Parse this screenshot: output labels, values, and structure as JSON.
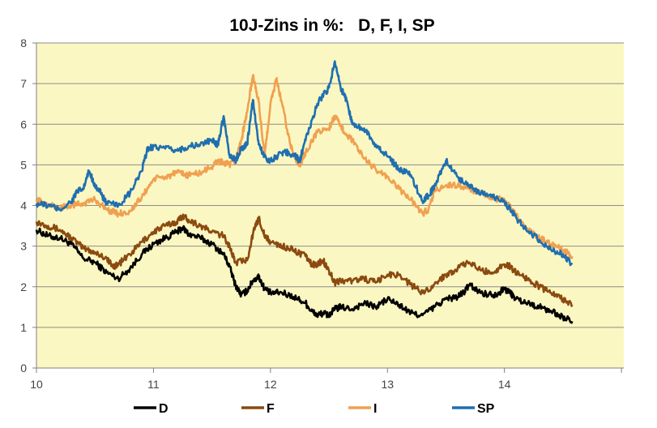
{
  "chart_data": {
    "type": "line",
    "title": "10J-Zins in %:   D, F, I, SP",
    "xlabel": "",
    "ylabel": "",
    "xlim": [
      10,
      15.02
    ],
    "ylim": [
      0,
      8
    ],
    "x_ticks": [
      "10",
      "11",
      "12",
      "13",
      "14"
    ],
    "y_ticks": [
      "0",
      "1",
      "2",
      "3",
      "4",
      "5",
      "6",
      "7",
      "8"
    ],
    "grid": "horizontal",
    "legend_position": "bottom",
    "plot_background": "#fbf7c2",
    "series": [
      {
        "name": "D",
        "color": "#000000",
        "points": [
          [
            10.0,
            3.4
          ],
          [
            10.1,
            3.25
          ],
          [
            10.2,
            3.2
          ],
          [
            10.3,
            3.05
          ],
          [
            10.4,
            2.7
          ],
          [
            10.5,
            2.6
          ],
          [
            10.6,
            2.35
          ],
          [
            10.7,
            2.2
          ],
          [
            10.8,
            2.45
          ],
          [
            10.9,
            2.8
          ],
          [
            11.0,
            3.05
          ],
          [
            11.1,
            3.2
          ],
          [
            11.2,
            3.35
          ],
          [
            11.25,
            3.45
          ],
          [
            11.3,
            3.3
          ],
          [
            11.4,
            3.2
          ],
          [
            11.5,
            3.05
          ],
          [
            11.6,
            2.8
          ],
          [
            11.65,
            2.5
          ],
          [
            11.7,
            2.05
          ],
          [
            11.75,
            1.8
          ],
          [
            11.8,
            1.9
          ],
          [
            11.85,
            2.15
          ],
          [
            11.9,
            2.25
          ],
          [
            11.95,
            1.95
          ],
          [
            12.0,
            1.85
          ],
          [
            12.1,
            1.85
          ],
          [
            12.2,
            1.75
          ],
          [
            12.3,
            1.6
          ],
          [
            12.35,
            1.4
          ],
          [
            12.4,
            1.3
          ],
          [
            12.45,
            1.35
          ],
          [
            12.5,
            1.3
          ],
          [
            12.55,
            1.45
          ],
          [
            12.6,
            1.5
          ],
          [
            12.7,
            1.45
          ],
          [
            12.8,
            1.6
          ],
          [
            12.9,
            1.5
          ],
          [
            13.0,
            1.7
          ],
          [
            13.1,
            1.55
          ],
          [
            13.2,
            1.35
          ],
          [
            13.3,
            1.3
          ],
          [
            13.4,
            1.5
          ],
          [
            13.5,
            1.7
          ],
          [
            13.6,
            1.75
          ],
          [
            13.65,
            1.85
          ],
          [
            13.7,
            2.05
          ],
          [
            13.8,
            1.85
          ],
          [
            13.9,
            1.8
          ],
          [
            13.95,
            1.85
          ],
          [
            14.0,
            1.95
          ],
          [
            14.05,
            1.85
          ],
          [
            14.1,
            1.7
          ],
          [
            14.2,
            1.6
          ],
          [
            14.3,
            1.5
          ],
          [
            14.4,
            1.4
          ],
          [
            14.5,
            1.25
          ],
          [
            14.58,
            1.15
          ]
        ]
      },
      {
        "name": "F",
        "color": "#8b4a10",
        "points": [
          [
            10.0,
            3.6
          ],
          [
            10.1,
            3.5
          ],
          [
            10.2,
            3.4
          ],
          [
            10.3,
            3.2
          ],
          [
            10.4,
            2.95
          ],
          [
            10.5,
            2.85
          ],
          [
            10.6,
            2.7
          ],
          [
            10.65,
            2.5
          ],
          [
            10.7,
            2.55
          ],
          [
            10.8,
            2.8
          ],
          [
            10.9,
            3.1
          ],
          [
            11.0,
            3.35
          ],
          [
            11.1,
            3.5
          ],
          [
            11.2,
            3.6
          ],
          [
            11.25,
            3.75
          ],
          [
            11.3,
            3.65
          ],
          [
            11.4,
            3.5
          ],
          [
            11.5,
            3.35
          ],
          [
            11.6,
            3.25
          ],
          [
            11.65,
            3.0
          ],
          [
            11.7,
            2.6
          ],
          [
            11.8,
            2.65
          ],
          [
            11.85,
            3.3
          ],
          [
            11.9,
            3.7
          ],
          [
            11.95,
            3.25
          ],
          [
            12.0,
            3.1
          ],
          [
            12.1,
            3.0
          ],
          [
            12.2,
            2.9
          ],
          [
            12.3,
            2.75
          ],
          [
            12.35,
            2.55
          ],
          [
            12.4,
            2.55
          ],
          [
            12.45,
            2.65
          ],
          [
            12.5,
            2.4
          ],
          [
            12.55,
            2.1
          ],
          [
            12.6,
            2.15
          ],
          [
            12.7,
            2.15
          ],
          [
            12.8,
            2.2
          ],
          [
            12.9,
            2.1
          ],
          [
            13.0,
            2.3
          ],
          [
            13.1,
            2.3
          ],
          [
            13.2,
            2.05
          ],
          [
            13.3,
            1.85
          ],
          [
            13.4,
            2.05
          ],
          [
            13.5,
            2.3
          ],
          [
            13.6,
            2.45
          ],
          [
            13.7,
            2.6
          ],
          [
            13.8,
            2.4
          ],
          [
            13.9,
            2.35
          ],
          [
            14.0,
            2.55
          ],
          [
            14.05,
            2.5
          ],
          [
            14.1,
            2.35
          ],
          [
            14.2,
            2.2
          ],
          [
            14.3,
            2.0
          ],
          [
            14.4,
            1.85
          ],
          [
            14.5,
            1.7
          ],
          [
            14.58,
            1.55
          ]
        ]
      },
      {
        "name": "I",
        "color": "#f0a050",
        "points": [
          [
            10.0,
            4.15
          ],
          [
            10.1,
            4.0
          ],
          [
            10.2,
            3.95
          ],
          [
            10.3,
            4.0
          ],
          [
            10.4,
            4.05
          ],
          [
            10.5,
            4.15
          ],
          [
            10.6,
            3.9
          ],
          [
            10.7,
            3.8
          ],
          [
            10.8,
            3.85
          ],
          [
            10.9,
            4.2
          ],
          [
            11.0,
            4.65
          ],
          [
            11.1,
            4.7
          ],
          [
            11.2,
            4.8
          ],
          [
            11.3,
            4.75
          ],
          [
            11.4,
            4.8
          ],
          [
            11.5,
            4.95
          ],
          [
            11.55,
            5.1
          ],
          [
            11.6,
            5.05
          ],
          [
            11.65,
            5.0
          ],
          [
            11.7,
            5.1
          ],
          [
            11.75,
            5.6
          ],
          [
            11.8,
            6.3
          ],
          [
            11.85,
            7.2
          ],
          [
            11.9,
            6.55
          ],
          [
            11.95,
            5.2
          ],
          [
            12.0,
            6.5
          ],
          [
            12.05,
            7.1
          ],
          [
            12.1,
            6.5
          ],
          [
            12.15,
            5.75
          ],
          [
            12.2,
            5.2
          ],
          [
            12.25,
            5.0
          ],
          [
            12.3,
            5.3
          ],
          [
            12.4,
            5.8
          ],
          [
            12.5,
            5.9
          ],
          [
            12.55,
            6.2
          ],
          [
            12.6,
            5.95
          ],
          [
            12.65,
            5.75
          ],
          [
            12.7,
            5.6
          ],
          [
            12.8,
            5.15
          ],
          [
            12.9,
            4.9
          ],
          [
            13.0,
            4.7
          ],
          [
            13.1,
            4.4
          ],
          [
            13.2,
            4.15
          ],
          [
            13.3,
            3.8
          ],
          [
            13.35,
            3.9
          ],
          [
            13.4,
            4.35
          ],
          [
            13.5,
            4.5
          ],
          [
            13.6,
            4.5
          ],
          [
            13.7,
            4.4
          ],
          [
            13.8,
            4.3
          ],
          [
            13.9,
            4.15
          ],
          [
            14.0,
            4.15
          ],
          [
            14.1,
            3.75
          ],
          [
            14.2,
            3.4
          ],
          [
            14.3,
            3.2
          ],
          [
            14.4,
            3.05
          ],
          [
            14.5,
            2.9
          ],
          [
            14.58,
            2.75
          ]
        ]
      },
      {
        "name": "SP",
        "color": "#1f6fb0",
        "points": [
          [
            10.0,
            4.05
          ],
          [
            10.1,
            4.0
          ],
          [
            10.2,
            3.9
          ],
          [
            10.3,
            4.1
          ],
          [
            10.35,
            4.35
          ],
          [
            10.4,
            4.4
          ],
          [
            10.45,
            4.85
          ],
          [
            10.5,
            4.5
          ],
          [
            10.55,
            4.3
          ],
          [
            10.6,
            4.05
          ],
          [
            10.7,
            4.0
          ],
          [
            10.8,
            4.3
          ],
          [
            10.9,
            4.85
          ],
          [
            10.95,
            5.4
          ],
          [
            11.0,
            5.45
          ],
          [
            11.1,
            5.4
          ],
          [
            11.2,
            5.35
          ],
          [
            11.3,
            5.45
          ],
          [
            11.4,
            5.5
          ],
          [
            11.5,
            5.6
          ],
          [
            11.55,
            5.5
          ],
          [
            11.6,
            6.2
          ],
          [
            11.65,
            5.25
          ],
          [
            11.7,
            5.1
          ],
          [
            11.75,
            5.4
          ],
          [
            11.8,
            5.5
          ],
          [
            11.85,
            6.6
          ],
          [
            11.9,
            5.5
          ],
          [
            11.95,
            5.2
          ],
          [
            12.0,
            5.1
          ],
          [
            12.1,
            5.3
          ],
          [
            12.15,
            5.3
          ],
          [
            12.2,
            5.25
          ],
          [
            12.25,
            5.1
          ],
          [
            12.3,
            5.6
          ],
          [
            12.4,
            6.5
          ],
          [
            12.5,
            6.9
          ],
          [
            12.55,
            7.55
          ],
          [
            12.6,
            6.9
          ],
          [
            12.65,
            6.6
          ],
          [
            12.7,
            6.0
          ],
          [
            12.8,
            5.9
          ],
          [
            12.9,
            5.5
          ],
          [
            13.0,
            5.2
          ],
          [
            13.1,
            4.9
          ],
          [
            13.2,
            4.75
          ],
          [
            13.3,
            4.1
          ],
          [
            13.35,
            4.25
          ],
          [
            13.4,
            4.45
          ],
          [
            13.5,
            5.1
          ],
          [
            13.6,
            4.7
          ],
          [
            13.7,
            4.5
          ],
          [
            13.8,
            4.3
          ],
          [
            13.9,
            4.2
          ],
          [
            14.0,
            4.1
          ],
          [
            14.1,
            3.7
          ],
          [
            14.2,
            3.35
          ],
          [
            14.3,
            3.15
          ],
          [
            14.4,
            2.9
          ],
          [
            14.5,
            2.8
          ],
          [
            14.58,
            2.55
          ]
        ]
      }
    ]
  }
}
